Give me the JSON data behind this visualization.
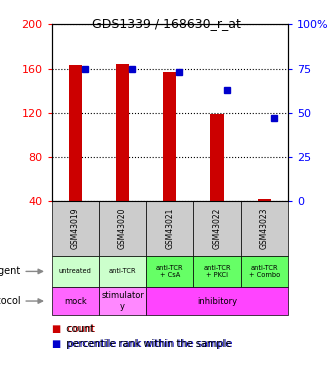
{
  "title": "GDS1339 / 168630_r_at",
  "samples": [
    "GSM43019",
    "GSM43020",
    "GSM43021",
    "GSM43022",
    "GSM43023"
  ],
  "counts": [
    163,
    164,
    157,
    119,
    42
  ],
  "percentile_ranks": [
    75,
    75,
    73,
    63,
    47
  ],
  "ylim_left": [
    40,
    200
  ],
  "ylim_right": [
    0,
    100
  ],
  "yticks_left": [
    40,
    80,
    120,
    160,
    200
  ],
  "yticks_right": [
    0,
    25,
    50,
    75,
    100
  ],
  "bar_color": "#cc0000",
  "dot_color": "#0000cc",
  "agent_labels": [
    "untreated",
    "anti-TCR",
    "anti-TCR\n+ CsA",
    "anti-TCR\n+ PKCi",
    "anti-TCR\n+ Combo"
  ],
  "agent_color_light": "#ccffcc",
  "agent_color_dark": "#66ff66",
  "protocol_data": [
    {
      "start": 0,
      "end": 0,
      "label": "mock",
      "color": "#ff66ff"
    },
    {
      "start": 1,
      "end": 1,
      "label": "stimulator\ny",
      "color": "#ff88ff"
    },
    {
      "start": 2,
      "end": 4,
      "label": "inhibitory",
      "color": "#ff44ff"
    }
  ],
  "sample_bg": "#cccccc",
  "legend_count_color": "#cc0000",
  "legend_pct_color": "#0000cc",
  "right_ytick_labels": [
    "0",
    "25",
    "50",
    "75",
    "100%"
  ]
}
